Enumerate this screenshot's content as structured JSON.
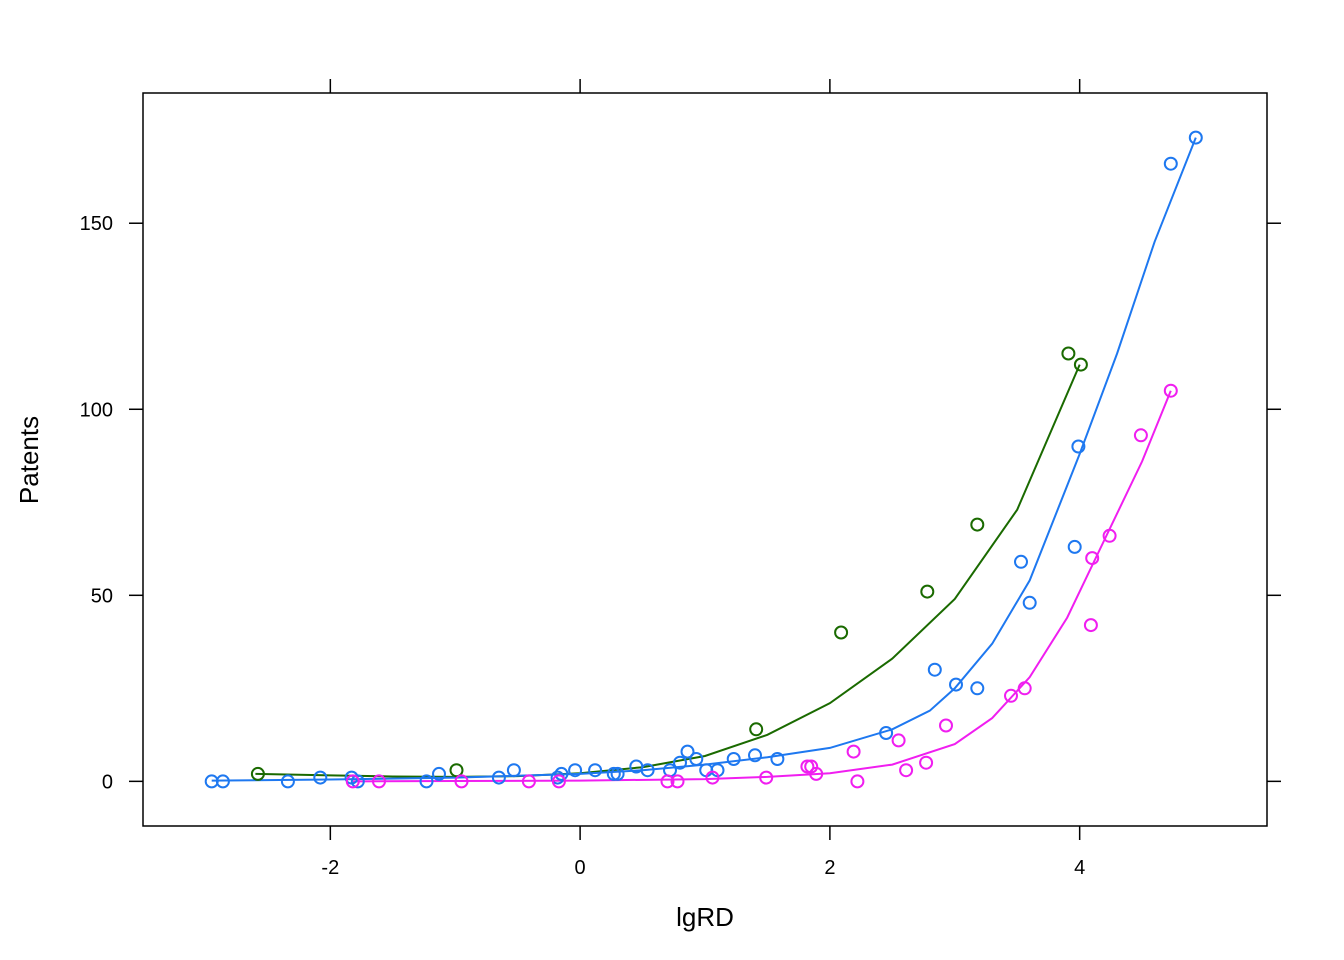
{
  "chart_data": {
    "type": "scatter",
    "title": "",
    "xlabel": "lgRD",
    "ylabel": "Patents",
    "xlim": [
      -3.5,
      5.5
    ],
    "ylim": [
      -12,
      185
    ],
    "x_ticks": [
      -2,
      0,
      2,
      4
    ],
    "x_tick_labels": [
      "-2",
      "0",
      "2",
      "4"
    ],
    "y_ticks": [
      0,
      50,
      100,
      150
    ],
    "y_tick_labels": [
      "0",
      "50",
      "100",
      "150"
    ],
    "grid": false,
    "legend": "none",
    "series": [
      {
        "color": "#1a6a00",
        "points": [
          [
            -2.58,
            2
          ],
          [
            -0.99,
            3
          ],
          [
            1.41,
            14
          ],
          [
            2.09,
            40
          ],
          [
            2.78,
            51
          ],
          [
            3.18,
            69
          ],
          [
            3.91,
            115
          ],
          [
            4.01,
            112
          ]
        ],
        "fit": [
          [
            -2.6,
            2.0
          ],
          [
            -2.0,
            1.6
          ],
          [
            -1.5,
            1.3
          ],
          [
            -1.0,
            1.2
          ],
          [
            -0.5,
            1.4
          ],
          [
            0.0,
            2.2
          ],
          [
            0.5,
            3.8
          ],
          [
            1.0,
            6.8
          ],
          [
            1.5,
            12.5
          ],
          [
            2.0,
            21
          ],
          [
            2.5,
            33
          ],
          [
            3.0,
            49
          ],
          [
            3.5,
            73
          ],
          [
            4.0,
            112
          ]
        ]
      },
      {
        "color": "#1e78f0",
        "points": [
          [
            -2.95,
            0
          ],
          [
            -2.86,
            0
          ],
          [
            -2.34,
            0
          ],
          [
            -2.08,
            1
          ],
          [
            -1.83,
            1
          ],
          [
            -1.78,
            0
          ],
          [
            -1.23,
            0
          ],
          [
            -1.13,
            2
          ],
          [
            -0.65,
            1
          ],
          [
            -0.53,
            3
          ],
          [
            -0.18,
            1
          ],
          [
            -0.15,
            2
          ],
          [
            -0.04,
            3
          ],
          [
            0.12,
            3
          ],
          [
            0.27,
            2
          ],
          [
            0.3,
            2
          ],
          [
            0.45,
            4
          ],
          [
            0.54,
            3
          ],
          [
            0.72,
            3
          ],
          [
            0.8,
            5
          ],
          [
            0.86,
            8
          ],
          [
            0.93,
            6
          ],
          [
            1.01,
            3
          ],
          [
            1.1,
            3
          ],
          [
            1.23,
            6
          ],
          [
            1.4,
            7
          ],
          [
            1.58,
            6
          ],
          [
            2.45,
            13
          ],
          [
            2.84,
            30
          ],
          [
            3.01,
            26
          ],
          [
            3.18,
            25
          ],
          [
            3.53,
            59
          ],
          [
            3.6,
            48
          ],
          [
            3.96,
            63
          ],
          [
            3.99,
            90
          ],
          [
            4.73,
            166
          ],
          [
            4.93,
            173
          ]
        ],
        "fit": [
          [
            -2.95,
            0.2
          ],
          [
            -2.0,
            0.5
          ],
          [
            -1.0,
            1.0
          ],
          [
            0.0,
            2.0
          ],
          [
            0.5,
            3.0
          ],
          [
            1.0,
            4.5
          ],
          [
            1.5,
            6.5
          ],
          [
            2.0,
            9.0
          ],
          [
            2.5,
            14
          ],
          [
            2.8,
            19
          ],
          [
            3.0,
            25
          ],
          [
            3.3,
            37
          ],
          [
            3.6,
            54
          ],
          [
            4.0,
            88
          ],
          [
            4.3,
            115
          ],
          [
            4.6,
            145
          ],
          [
            4.93,
            173
          ]
        ]
      },
      {
        "color": "#f01ef0",
        "points": [
          [
            -1.82,
            0
          ],
          [
            -1.61,
            0
          ],
          [
            -0.95,
            0
          ],
          [
            -0.41,
            0
          ],
          [
            -0.17,
            0
          ],
          [
            0.7,
            0
          ],
          [
            0.78,
            0
          ],
          [
            1.06,
            1
          ],
          [
            1.49,
            1
          ],
          [
            1.82,
            4
          ],
          [
            1.85,
            4
          ],
          [
            1.89,
            2
          ],
          [
            2.19,
            8
          ],
          [
            2.22,
            0
          ],
          [
            2.55,
            11
          ],
          [
            2.61,
            3
          ],
          [
            2.77,
            5
          ],
          [
            2.93,
            15
          ],
          [
            3.45,
            23
          ],
          [
            3.56,
            25
          ],
          [
            4.09,
            42
          ],
          [
            4.1,
            60
          ],
          [
            4.24,
            66
          ],
          [
            4.49,
            93
          ],
          [
            4.73,
            105
          ]
        ],
        "fit": [
          [
            -1.82,
            0.0
          ],
          [
            -1.0,
            0.1
          ],
          [
            0.0,
            0.2
          ],
          [
            1.0,
            0.6
          ],
          [
            1.5,
            1.2
          ],
          [
            2.0,
            2.2
          ],
          [
            2.5,
            4.5
          ],
          [
            3.0,
            10
          ],
          [
            3.3,
            17
          ],
          [
            3.6,
            28
          ],
          [
            3.9,
            44
          ],
          [
            4.2,
            65
          ],
          [
            4.5,
            86
          ],
          [
            4.73,
            105
          ]
        ]
      }
    ]
  }
}
